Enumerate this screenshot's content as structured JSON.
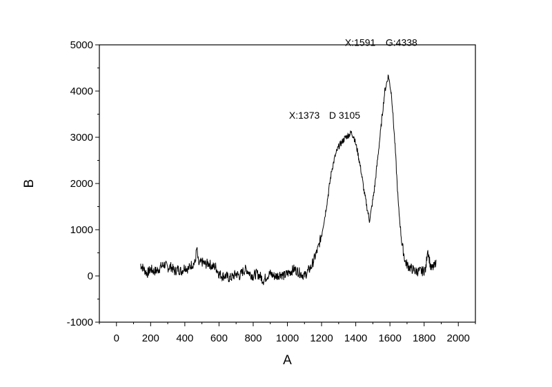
{
  "chart_data": {
    "type": "line",
    "xlabel": "A",
    "ylabel": "B",
    "xlim": [
      -100,
      2100
    ],
    "ylim": [
      -1000,
      5000
    ],
    "x_ticks": [
      0,
      200,
      400,
      600,
      800,
      1000,
      1200,
      1400,
      1600,
      1800,
      2000
    ],
    "y_ticks": [
      -1000,
      0,
      1000,
      2000,
      3000,
      4000,
      5000
    ],
    "grid": false,
    "line_color": "#000000",
    "annotations": [
      {
        "text": "X:1373",
        "x": 1373,
        "y": 3105
      },
      {
        "text": "D 3105",
        "x": 1373,
        "y": 3105
      },
      {
        "text": "X:1591",
        "x": 1591,
        "y": 4338
      },
      {
        "text": "G:4338",
        "x": 1591,
        "y": 4338
      }
    ],
    "series": [
      {
        "x": [
          140,
          160,
          180,
          200,
          220,
          240,
          260,
          280,
          300,
          320,
          340,
          360,
          380,
          400,
          420,
          440,
          460,
          470,
          480,
          500,
          520,
          540,
          560,
          580,
          600,
          620,
          640,
          660,
          680,
          700,
          720,
          740,
          760,
          780,
          800,
          820,
          840,
          860,
          880,
          900,
          920,
          940,
          960,
          980,
          1000,
          1020,
          1040,
          1060,
          1080,
          1100,
          1120,
          1140,
          1160,
          1180,
          1200,
          1220,
          1240,
          1260,
          1280,
          1300,
          1320,
          1340,
          1360,
          1373,
          1390,
          1410,
          1430,
          1450,
          1470,
          1480,
          1490,
          1510,
          1530,
          1550,
          1570,
          1591,
          1610,
          1630,
          1650,
          1670,
          1690,
          1710,
          1730,
          1750,
          1770,
          1790,
          1810,
          1820,
          1840,
          1860,
          1870
        ],
        "y": [
          250,
          150,
          50,
          150,
          100,
          120,
          200,
          250,
          180,
          200,
          100,
          150,
          100,
          200,
          150,
          250,
          280,
          600,
          250,
          300,
          250,
          280,
          200,
          200,
          50,
          0,
          0,
          -50,
          -20,
          50,
          0,
          100,
          150,
          50,
          0,
          50,
          0,
          -100,
          0,
          50,
          0,
          0,
          50,
          0,
          50,
          100,
          150,
          100,
          50,
          0,
          100,
          200,
          400,
          600,
          900,
          1300,
          1800,
          2300,
          2600,
          2800,
          2900,
          3000,
          3050,
          3105,
          3000,
          2700,
          2300,
          1800,
          1400,
          1200,
          1400,
          1900,
          2600,
          3300,
          4000,
          4338,
          3900,
          2800,
          1500,
          700,
          300,
          200,
          150,
          100,
          100,
          100,
          150,
          600,
          150,
          200,
          350
        ]
      }
    ]
  }
}
